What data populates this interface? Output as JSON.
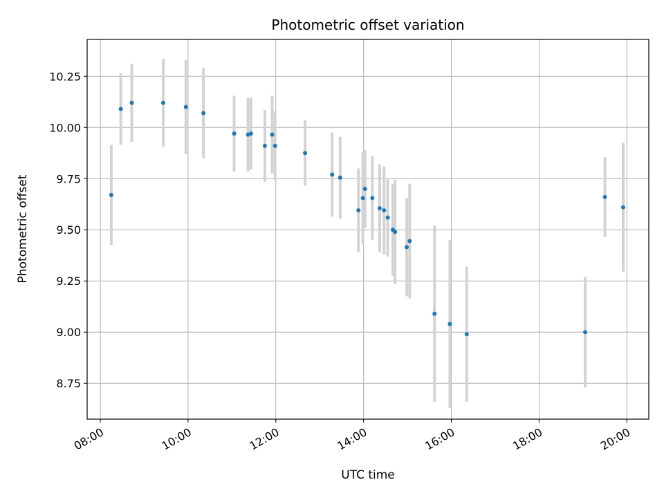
{
  "chart_data": {
    "type": "scatter",
    "title": "Photometric offset variation",
    "xlabel": "UTC time",
    "ylabel": "Photometric offset",
    "x_unit": "hours (UTC)",
    "xlim": [
      "07:42",
      "20:30"
    ],
    "ylim": [
      8.575,
      10.43
    ],
    "x_ticks": [
      "08:00",
      "10:00",
      "12:00",
      "14:00",
      "16:00",
      "18:00",
      "20:00"
    ],
    "y_ticks": [
      "8.75",
      "9.00",
      "9.25",
      "9.50",
      "9.75",
      "10.00",
      "10.25"
    ],
    "grid": true,
    "colors": {
      "points": "#1f77b4",
      "error_bars": "#d3d3d3",
      "grid": "#b0b0b0"
    },
    "points": [
      {
        "x": "08:15",
        "y": 9.67,
        "yerr": 0.245
      },
      {
        "x": "08:28",
        "y": 10.09,
        "yerr": 0.175
      },
      {
        "x": "08:43",
        "y": 10.12,
        "yerr": 0.19
      },
      {
        "x": "09:26",
        "y": 10.12,
        "yerr": 0.215
      },
      {
        "x": "09:57",
        "y": 10.1,
        "yerr": 0.23
      },
      {
        "x": "10:21",
        "y": 10.07,
        "yerr": 0.22
      },
      {
        "x": "11:03",
        "y": 9.97,
        "yerr": 0.185
      },
      {
        "x": "11:22",
        "y": 9.965,
        "yerr": 0.18
      },
      {
        "x": "11:26",
        "y": 9.97,
        "yerr": 0.175
      },
      {
        "x": "11:45",
        "y": 9.91,
        "yerr": 0.175
      },
      {
        "x": "11:55",
        "y": 9.965,
        "yerr": 0.19
      },
      {
        "x": "11:59",
        "y": 9.91,
        "yerr": 0.17
      },
      {
        "x": "12:40",
        "y": 9.875,
        "yerr": 0.16
      },
      {
        "x": "13:17",
        "y": 9.77,
        "yerr": 0.205
      },
      {
        "x": "13:28",
        "y": 9.755,
        "yerr": 0.2
      },
      {
        "x": "13:53",
        "y": 9.595,
        "yerr": 0.205
      },
      {
        "x": "13:59",
        "y": 9.655,
        "yerr": 0.225
      },
      {
        "x": "14:02",
        "y": 9.7,
        "yerr": 0.19
      },
      {
        "x": "14:12",
        "y": 9.655,
        "yerr": 0.205
      },
      {
        "x": "14:22",
        "y": 9.605,
        "yerr": 0.215
      },
      {
        "x": "14:28",
        "y": 9.595,
        "yerr": 0.215
      },
      {
        "x": "14:33",
        "y": 9.56,
        "yerr": 0.19
      },
      {
        "x": "14:40",
        "y": 9.5,
        "yerr": 0.225
      },
      {
        "x": "14:43",
        "y": 9.49,
        "yerr": 0.255
      },
      {
        "x": "14:59",
        "y": 9.415,
        "yerr": 0.24
      },
      {
        "x": "15:03",
        "y": 9.445,
        "yerr": 0.28
      },
      {
        "x": "15:37",
        "y": 9.09,
        "yerr": 0.43
      },
      {
        "x": "15:58",
        "y": 9.04,
        "yerr": 0.41
      },
      {
        "x": "16:21",
        "y": 8.99,
        "yerr": 0.33
      },
      {
        "x": "19:03",
        "y": 9.0,
        "yerr": 0.27
      },
      {
        "x": "19:30",
        "y": 9.66,
        "yerr": 0.195
      },
      {
        "x": "19:55",
        "y": 9.61,
        "yerr": 0.315
      }
    ]
  }
}
